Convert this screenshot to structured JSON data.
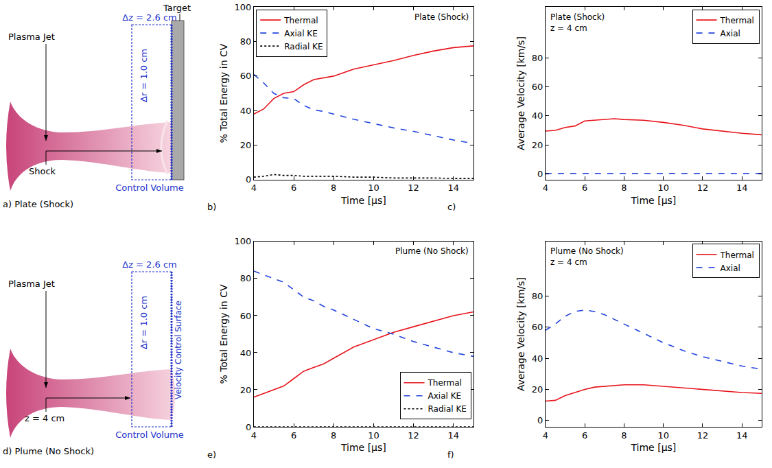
{
  "diagrams": [
    {
      "panel": "a) Plate (Shock)",
      "labels": {
        "jet": "Plasma Jet",
        "target": "Target",
        "shock": "Shock",
        "control_volume": "Control Volume",
        "dz": "Δz = 2.6 cm",
        "dr": "Δr = 1.0 cm"
      }
    },
    {
      "panel": "d) Plume (No Shock)",
      "labels": {
        "jet": "Plasma Jet",
        "position": "z = 4 cm",
        "control_volume": "Control Volume",
        "surface": "Velocity Control Surface",
        "dz": "Δz = 2.6 cm",
        "dr": "Δr = 1.0 cm"
      }
    }
  ],
  "chart_data": [
    {
      "panel": "b)",
      "type": "line",
      "annotations": [
        "Plate (Shock)"
      ],
      "x_label": "Time [μs]",
      "y_label": "% Total Energy in CV",
      "x": [
        4,
        4.5,
        5,
        5.5,
        6,
        6.5,
        7,
        7.5,
        8,
        9,
        10,
        11,
        12,
        13,
        14,
        15
      ],
      "series": [
        {
          "name": "Thermal",
          "color": "#e8141c",
          "line_style": "solid",
          "values": [
            38,
            41,
            47,
            50,
            51,
            55,
            58,
            59,
            60,
            64,
            66.5,
            69,
            72,
            74.5,
            76.5,
            77.5
          ]
        },
        {
          "name": "Axial KE",
          "color": "#2244dd",
          "line_style": "dashed",
          "values": [
            61,
            56,
            50,
            47.5,
            47,
            43,
            40.5,
            39.5,
            38,
            35,
            32.5,
            30,
            28,
            25.5,
            23,
            21
          ]
        },
        {
          "name": "Radial KE",
          "color": "#000000",
          "line_style": "dotted",
          "values": [
            1.5,
            2,
            3,
            2.5,
            2.5,
            2,
            2,
            2,
            2,
            1.5,
            1.5,
            1,
            1,
            1,
            0.7,
            0.7
          ]
        }
      ],
      "xlim": [
        4,
        15
      ],
      "xticks": [
        4,
        6,
        8,
        10,
        12,
        14
      ],
      "ylim": [
        0,
        100
      ],
      "yticks": [
        0,
        20,
        40,
        60,
        80,
        100
      ],
      "grid": false,
      "legend": "upper left"
    },
    {
      "panel": "c)",
      "type": "line",
      "annotations": [
        "Plate (Shock)",
        "z = 4 cm"
      ],
      "x_label": "Time [μs]",
      "y_label": "Average Velocity [km/s]",
      "x": [
        4,
        4.5,
        5,
        5.5,
        6,
        6.5,
        7,
        7.5,
        8,
        9,
        10,
        11,
        12,
        13,
        14,
        15
      ],
      "series": [
        {
          "name": "Thermal",
          "color": "#e8141c",
          "line_style": "solid",
          "values": [
            29.5,
            30,
            32,
            33,
            36.5,
            37,
            37.5,
            38,
            37.5,
            37,
            35.5,
            33.5,
            31,
            29.5,
            28,
            27
          ]
        },
        {
          "name": "Axial",
          "color": "#2244dd",
          "line_style": "dashed",
          "values": [
            0.3,
            0.3,
            0.3,
            0.3,
            0.3,
            0.3,
            0.3,
            0.3,
            0.3,
            0.3,
            0.3,
            0.3,
            0.3,
            0.3,
            0.3,
            0.3
          ]
        }
      ],
      "xlim": [
        4,
        15
      ],
      "xticks": [
        4,
        6,
        8,
        10,
        12,
        14
      ],
      "ylim": [
        -4,
        115
      ],
      "yticks": [
        0,
        20,
        40,
        60,
        80
      ],
      "grid": false,
      "legend": "upper right"
    },
    {
      "panel": "e)",
      "type": "line",
      "annotations": [
        "Plume (No Shock)"
      ],
      "x_label": "Time [μs]",
      "y_label": "% Total Energy in CV",
      "x": [
        4,
        4.5,
        5,
        5.5,
        6,
        6.5,
        7,
        7.5,
        8,
        9,
        10,
        11,
        12,
        13,
        14,
        15
      ],
      "series": [
        {
          "name": "Thermal",
          "color": "#e8141c",
          "line_style": "solid",
          "values": [
            16,
            18,
            20,
            22,
            26,
            30,
            32,
            34,
            37,
            43,
            47,
            51,
            54,
            57,
            60,
            62
          ]
        },
        {
          "name": "Axial KE",
          "color": "#2244dd",
          "line_style": "dashed",
          "values": [
            84,
            82,
            80,
            78,
            74,
            70,
            68,
            65,
            63,
            58,
            53,
            50,
            46,
            43,
            40,
            38
          ]
        },
        {
          "name": "Radial KE",
          "color": "#000000",
          "line_style": "dotted",
          "values": [
            0,
            0,
            0,
            0,
            0,
            0,
            0,
            0,
            0,
            0,
            0,
            0,
            0,
            0,
            0,
            0
          ]
        }
      ],
      "xlim": [
        4,
        15
      ],
      "xticks": [
        4,
        6,
        8,
        10,
        12,
        14
      ],
      "ylim": [
        0,
        100
      ],
      "yticks": [
        0,
        20,
        40,
        60,
        80,
        100
      ],
      "grid": false,
      "legend": "lower right"
    },
    {
      "panel": "f)",
      "type": "line",
      "annotations": [
        "Plume (No Shock)",
        "z = 4 cm"
      ],
      "x_label": "Time [μs]",
      "y_label": "Average Velocity [km/s]",
      "x": [
        4,
        4.5,
        5,
        5.5,
        6,
        6.5,
        7,
        7.5,
        8,
        9,
        10,
        11,
        12,
        13,
        14,
        15
      ],
      "series": [
        {
          "name": "Thermal",
          "color": "#e8141c",
          "line_style": "solid",
          "values": [
            12.5,
            13,
            16,
            18,
            20,
            21.5,
            22,
            22.5,
            23,
            23,
            22,
            21,
            20,
            19,
            18,
            17.5
          ]
        },
        {
          "name": "Axial",
          "color": "#2244dd",
          "line_style": "dashed",
          "values": [
            58,
            62,
            67,
            70,
            71,
            70,
            68,
            65,
            62,
            56,
            50,
            45,
            41,
            38,
            35,
            33
          ]
        }
      ],
      "xlim": [
        4,
        15
      ],
      "xticks": [
        4,
        6,
        8,
        10,
        12,
        14
      ],
      "ylim": [
        -4,
        115
      ],
      "yticks": [
        0,
        20,
        40,
        60,
        80
      ],
      "grid": false,
      "legend": "upper right"
    }
  ]
}
